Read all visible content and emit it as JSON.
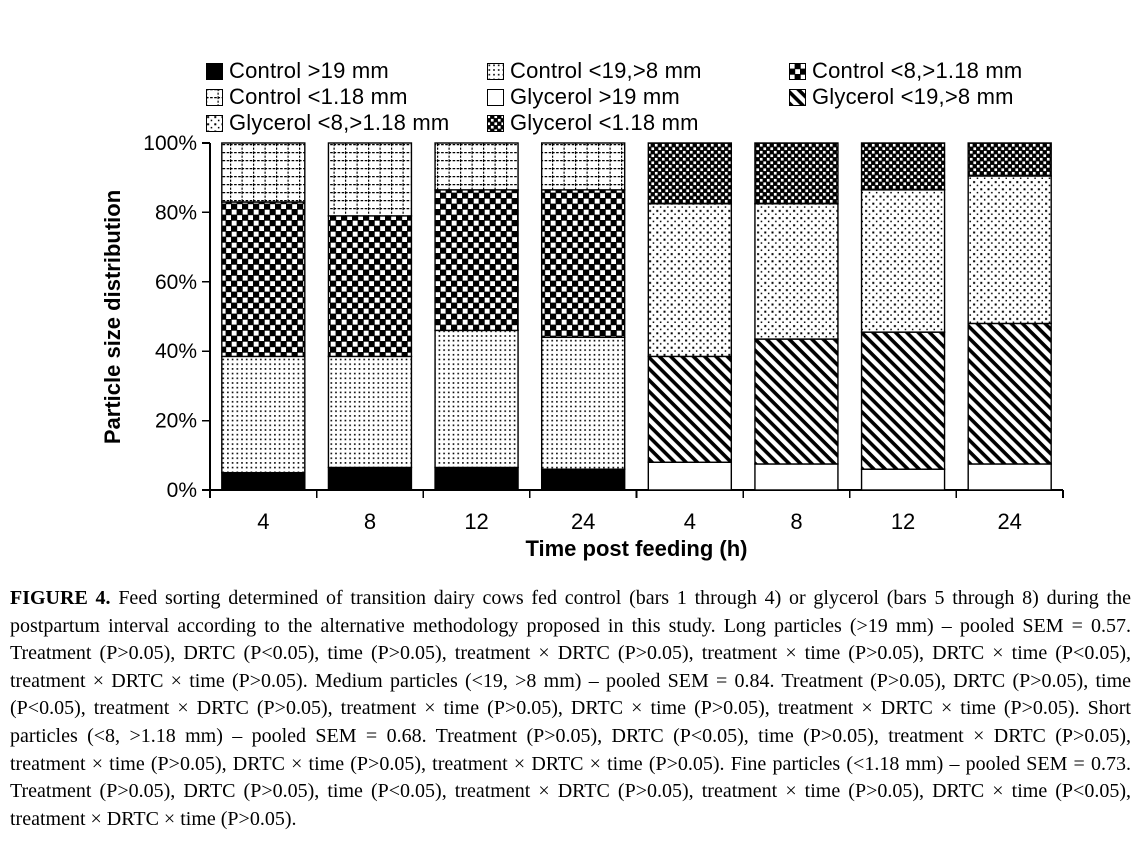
{
  "colors": {
    "ink": "#000000",
    "background": "#ffffff"
  },
  "figure": {
    "legend": {
      "items": [
        {
          "label": "Control >19 mm",
          "pattern": "solid-black"
        },
        {
          "label": "Control <19,>8 mm",
          "pattern": "fine-dots"
        },
        {
          "label": "Control <8,>1.18 mm",
          "pattern": "checker"
        },
        {
          "label": "Control <1.18 mm",
          "pattern": "dash-grid"
        },
        {
          "label": "Glycerol >19 mm",
          "pattern": "white"
        },
        {
          "label": "Glycerol <19,>8 mm",
          "pattern": "diag-stripes"
        },
        {
          "label": "Glycerol <8,>1.18 mm",
          "pattern": "sparse-dots"
        },
        {
          "label": "Glycerol <1.18 mm",
          "pattern": "dense-check"
        }
      ]
    },
    "caption": {
      "label": "FIGURE 4.",
      "text": "Feed sorting determined of transition dairy cows fed control (bars 1 through 4) or glycerol (bars 5 through 8) during the postpartum interval according to the alternative methodology proposed in this study. Long particles (>19 mm) – pooled SEM = 0.57. Treatment (P>0.05), DRTC (P<0.05), time (P>0.05), treatment × DRTC (P>0.05), treatment × time (P>0.05), DRTC × time (P<0.05), treatment × DRTC × time (P>0.05). Medium particles (<19, >8 mm) – pooled SEM = 0.84. Treatment (P>0.05), DRTC (P>0.05), time (P<0.05), treatment × DRTC (P>0.05), treatment × time (P>0.05), DRTC × time (P>0.05), treatment × DRTC × time (P>0.05). Short particles (<8, >1.18 mm) – pooled SEM = 0.68. Treatment (P>0.05), DRTC (P<0.05), time (P>0.05), treatment × DRTC (P>0.05), treatment × time (P>0.05), DRTC × time (P>0.05), treatment × DRTC × time (P>0.05). Fine particles (<1.18 mm) – pooled SEM = 0.73. Treatment (P>0.05), DRTC (P>0.05), time (P<0.05), treatment × DRTC (P>0.05), treatment × time (P>0.05), DRTC × time (P<0.05), treatment × DRTC × time (P>0.05)."
    }
  },
  "chart_data": {
    "type": "bar",
    "subtype": "stacked-100-percent",
    "title": "",
    "xlabel": "Time post feeding (h)",
    "ylabel": "Particle size distribution",
    "categories": [
      "4",
      "8",
      "12",
      "24",
      "4",
      "8",
      "12",
      "24"
    ],
    "category_groups": [
      "Control",
      "Control",
      "Control",
      "Control",
      "Glycerol",
      "Glycerol",
      "Glycerol",
      "Glycerol"
    ],
    "yticks": [
      "0%",
      "20%",
      "40%",
      "60%",
      "80%",
      "100%"
    ],
    "ylim": [
      0,
      100
    ],
    "grid": false,
    "legend_position": "top",
    "series": [
      {
        "name": "Control >19 mm",
        "pattern": "solid-black",
        "values": [
          5,
          6.5,
          6.5,
          6,
          0,
          0,
          0,
          0
        ]
      },
      {
        "name": "Control <19,>8 mm",
        "pattern": "fine-dots",
        "values": [
          33.5,
          32,
          39.5,
          38,
          0,
          0,
          0,
          0
        ]
      },
      {
        "name": "Control <8,>1.18 mm",
        "pattern": "checker",
        "values": [
          44.5,
          40.5,
          40.5,
          42.5,
          0,
          0,
          0,
          0
        ]
      },
      {
        "name": "Control <1.18 mm",
        "pattern": "dash-grid",
        "values": [
          17,
          21,
          13.5,
          13.5,
          0,
          0,
          0,
          0
        ]
      },
      {
        "name": "Glycerol >19 mm",
        "pattern": "white",
        "values": [
          0,
          0,
          0,
          0,
          8,
          7.5,
          6,
          7.5
        ]
      },
      {
        "name": "Glycerol <19,>8 mm",
        "pattern": "diag-stripes",
        "values": [
          0,
          0,
          0,
          0,
          30.5,
          36,
          39.5,
          40.5
        ]
      },
      {
        "name": "Glycerol <8,>1.18 mm",
        "pattern": "sparse-dots",
        "values": [
          0,
          0,
          0,
          0,
          44,
          39,
          41,
          42.5
        ]
      },
      {
        "name": "Glycerol <1.18 mm",
        "pattern": "dense-check",
        "values": [
          0,
          0,
          0,
          0,
          17.5,
          17.5,
          13.5,
          9.5
        ]
      }
    ]
  }
}
